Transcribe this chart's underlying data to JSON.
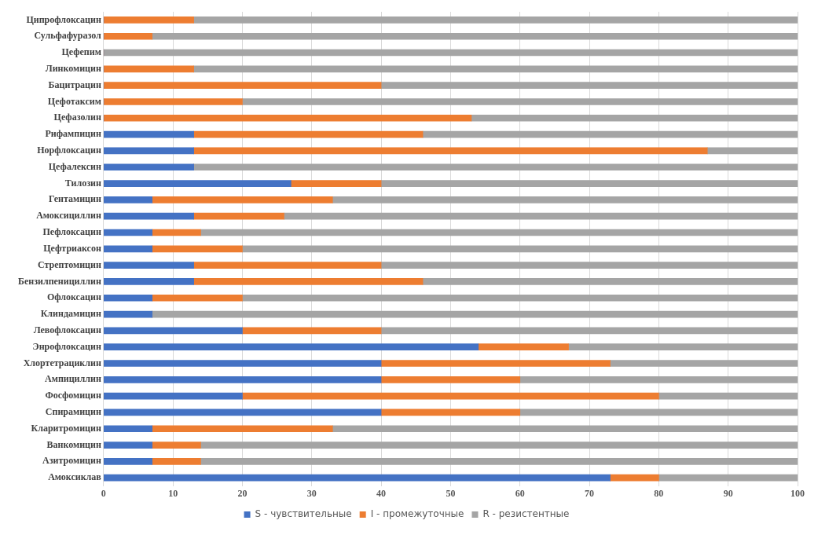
{
  "chart_data": {
    "type": "bar",
    "orientation": "horizontal",
    "stacked": true,
    "categories": [
      "Ципрофлоксацин",
      "Сульфафуразол",
      "Цефепим",
      "Линкомицин",
      "Бацитрацин",
      "Цефотаксим",
      "Цефазолин",
      "Рифампицин",
      "Норфлоксацин",
      "Цефалексин",
      "Тилозин",
      "Гентамицин",
      "Амоксициллин",
      "Пефлоксацин",
      "Цефтриаксон",
      "Стрептомицин",
      "Бензилпенициллин",
      "Офлоксацин",
      "Клиндамицин",
      "Левофлоксацин",
      "Энрофлоксацин",
      "Хлортетрациклин",
      "Ампициллин",
      "Фосфомицин",
      "Спирамицин",
      "Кларитромицин",
      "Ванкомицин",
      "Азитромицин",
      "Амоксиклав"
    ],
    "series": [
      {
        "name": "S - чувствительные",
        "color": "#4472c4",
        "values": [
          0,
          0,
          0,
          0,
          0,
          0,
          0,
          13,
          13,
          13,
          27,
          7,
          13,
          7,
          7,
          13,
          13,
          7,
          7,
          20,
          54,
          40,
          40,
          20,
          40,
          7,
          7,
          7,
          73
        ]
      },
      {
        "name": "I - промежуточные",
        "color": "#ed7d31",
        "values": [
          13,
          7,
          0,
          13,
          40,
          20,
          53,
          33,
          74,
          0,
          13,
          26,
          13,
          7,
          13,
          27,
          33,
          13,
          0,
          20,
          13,
          33,
          20,
          60,
          20,
          26,
          7,
          7,
          7
        ]
      },
      {
        "name": "R - резистентные",
        "color": "#a5a5a5",
        "values": [
          87,
          93,
          100,
          87,
          60,
          80,
          47,
          54,
          13,
          87,
          60,
          67,
          74,
          86,
          80,
          60,
          54,
          80,
          93,
          60,
          33,
          27,
          40,
          20,
          40,
          67,
          86,
          86,
          20
        ]
      }
    ],
    "xlim": [
      0,
      100
    ],
    "xticks": [
      0,
      10,
      20,
      30,
      40,
      50,
      60,
      70,
      80,
      90,
      100
    ],
    "grid": "x",
    "legend": "bottom"
  }
}
